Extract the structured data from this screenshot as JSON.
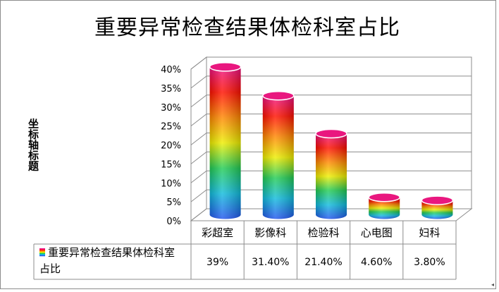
{
  "chart_data": {
    "type": "bar",
    "title": "重要异常检查结果体检科室占比",
    "xlabel": "",
    "ylabel": "坐标轴标题",
    "categories": [
      "彩超室",
      "影像科",
      "检验科",
      "心电图",
      "妇科"
    ],
    "series": [
      {
        "name": "重要异常检查结果体检科室占比",
        "values": [
          39,
          31.4,
          21.4,
          4.6,
          3.8
        ],
        "labels": [
          "39%",
          "31.40%",
          "21.40%",
          "4.60%",
          "3.80%"
        ]
      }
    ],
    "yticks": [
      "0%",
      "5%",
      "10%",
      "15%",
      "20%",
      "25%",
      "30%",
      "35%",
      "40%"
    ],
    "ylim": [
      0,
      40
    ],
    "grid": true,
    "legend": "bottom-left",
    "data_table": true,
    "bar_style": "3d-cylinder",
    "colors": [
      "#2255ee",
      "#11bbdd",
      "#22cc55",
      "#eeee00",
      "#ff8800",
      "#ff1100",
      "#ee1188"
    ]
  }
}
